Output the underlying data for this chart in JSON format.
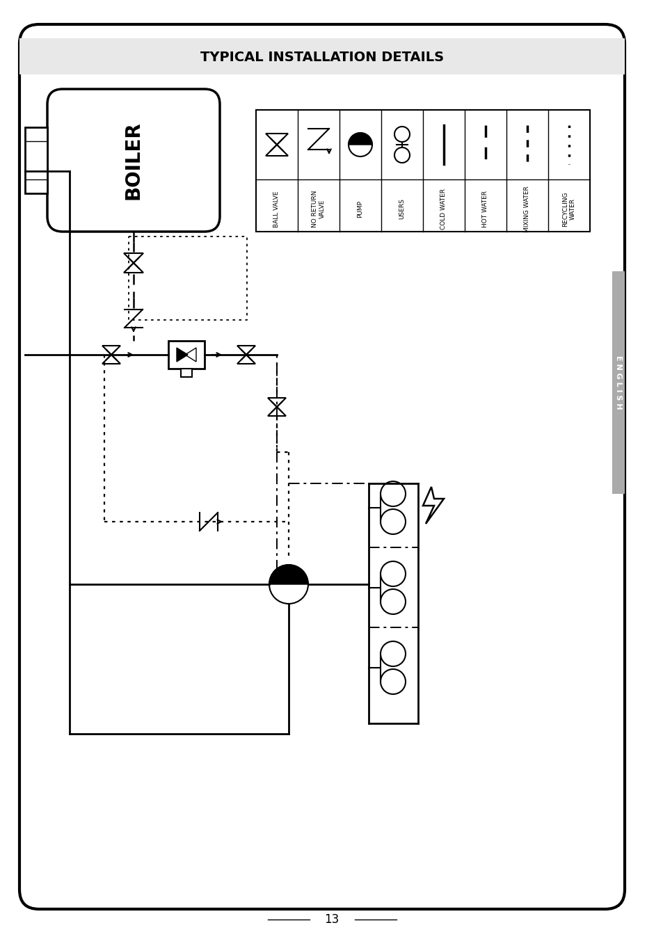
{
  "title": "TYPICAL INSTALLATION DETAILS",
  "page_number": "13",
  "background_color": "#ffffff",
  "border_color": "#000000",
  "title_bg_color": "#e8e8e8",
  "legend_labels": [
    "BALL VALVE",
    "NO RETURN\nVALVE",
    "PUMP",
    "USERS",
    "COLD WATER",
    "HOT WATER",
    "MIXING WATER",
    "RECYCLING\nWATER"
  ],
  "sidebar_text": "E N G L I S H",
  "sidebar_color": "#aaaaaa"
}
